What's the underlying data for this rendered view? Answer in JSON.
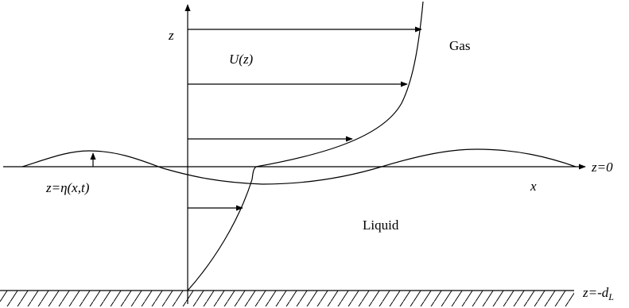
{
  "labels": {
    "z_axis": "z",
    "profile": "U(z)",
    "gas": "Gas",
    "liquid": "Liquid",
    "x_axis": "x",
    "mean_level": "z=0",
    "interface": "z=η(x,t)",
    "bottom": "z=-d",
    "bottom_subscript": "L"
  },
  "colors": {
    "stroke": "#000000",
    "background": "#ffffff"
  }
}
